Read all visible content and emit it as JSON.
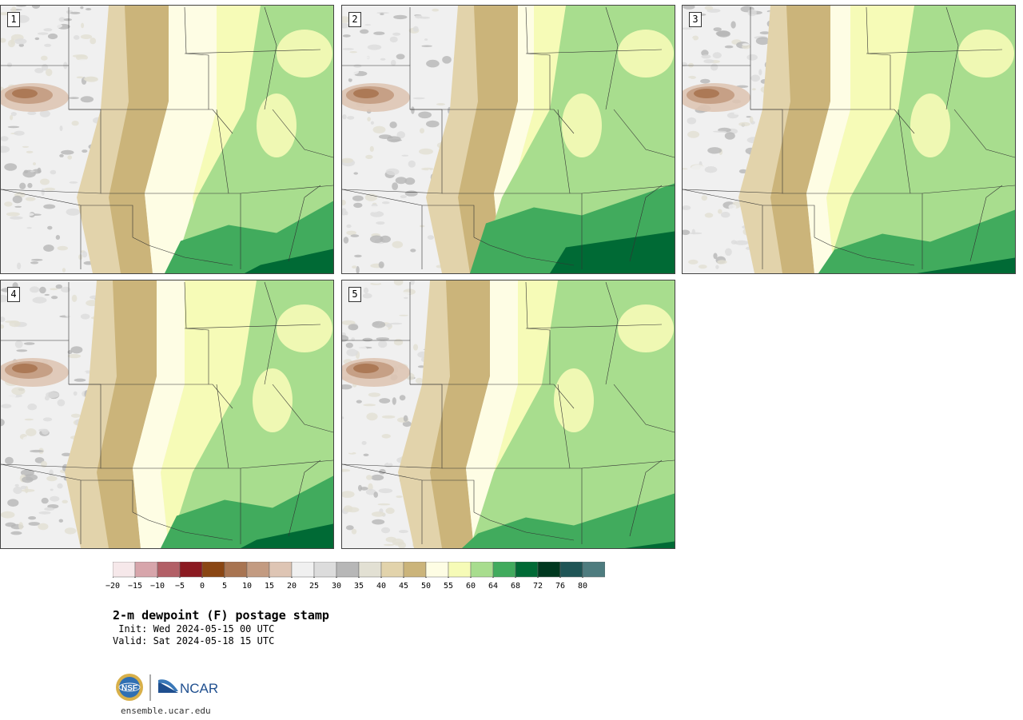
{
  "title": "2-m dewpoint (F) postage stamp",
  "init": " Init: Wed 2024-05-15 00 UTC",
  "valid": "Valid: Sat 2024-05-18 15 UTC",
  "website": "ensemble.ucar.edu",
  "logos": {
    "nsf": "NSF",
    "ncar": "NCAR"
  },
  "panels": [
    {
      "number": "1"
    },
    {
      "number": "2"
    },
    {
      "number": "3"
    },
    {
      "number": "4"
    },
    {
      "number": "5"
    }
  ],
  "colorbar": {
    "ticks": [
      "−20",
      "−15",
      "−10",
      "−5",
      "0",
      "5",
      "10",
      "15",
      "20",
      "25",
      "30",
      "35",
      "40",
      "45",
      "50",
      "55",
      "60",
      "64",
      "68",
      "72",
      "76",
      "80"
    ],
    "colors": [
      "#f6e8ea",
      "#d7a5ab",
      "#b25f66",
      "#8b1a21",
      "#8a4613",
      "#a87451",
      "#c39b81",
      "#dec5b4",
      "#f0f0f0",
      "#dcdcdc",
      "#b7b7b7",
      "#e2e0d3",
      "#e2d3ab",
      "#cbb47a",
      "#fefde4",
      "#f6fbb7",
      "#a8dd8e",
      "#41ab5d",
      "#006a35",
      "#00381f",
      "#1f5556",
      "#4e7c7f"
    ]
  }
}
